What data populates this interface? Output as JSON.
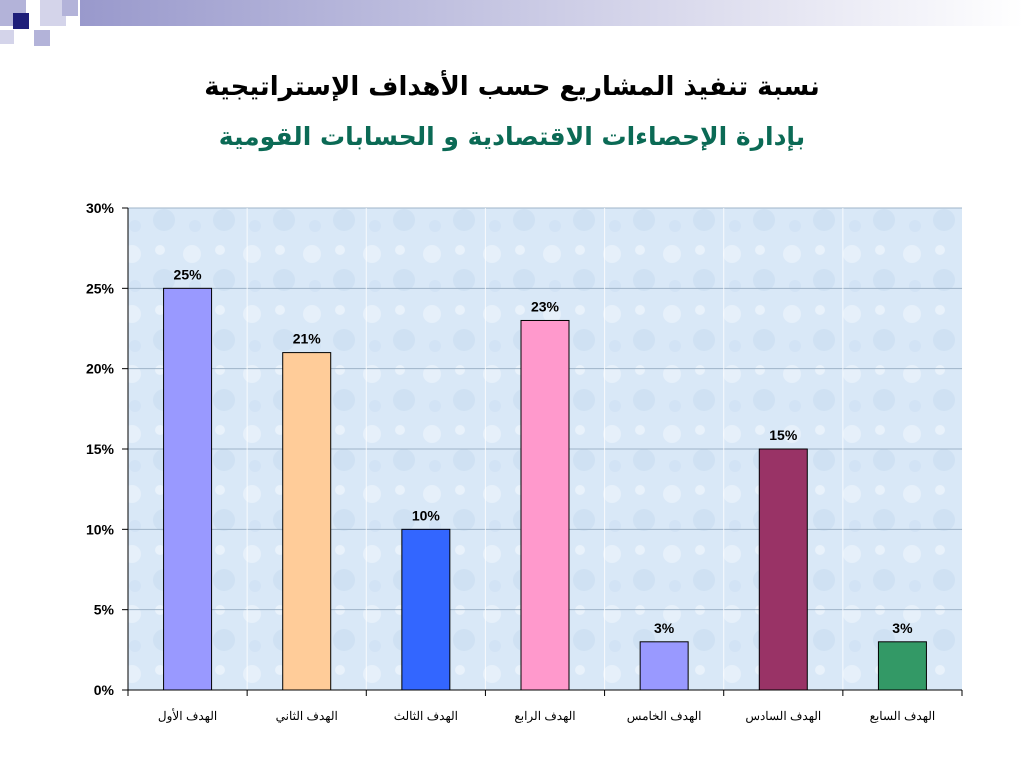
{
  "header": {
    "title_line1": "نسبة تنفيذ المشاريع حسب الأهداف الإستراتيجية",
    "title_line2": "بإدارة الإحصاءات الاقتصادية و الحسابات القومية"
  },
  "colors": {
    "title2": "#0b6a55",
    "plot_background": "#d9e8f7",
    "grid": "#9fb4c8",
    "decor_dark": "#1f1f7a",
    "decor_light": "#b3b3d9"
  },
  "chart_data": {
    "type": "bar",
    "categories": [
      "الهدف الأول",
      "الهدف الثاني",
      "الهدف الثالث",
      "الهدف الرابع",
      "الهدف الخامس",
      "الهدف السادس",
      "الهدف السابع"
    ],
    "values": [
      25,
      21,
      10,
      23,
      3,
      15,
      3
    ],
    "value_labels": [
      "25%",
      "21%",
      "10%",
      "23%",
      "3%",
      "15%",
      "3%"
    ],
    "bar_colors": [
      "#9999ff",
      "#ffcc99",
      "#3366ff",
      "#ff99cc",
      "#9999ff",
      "#993366",
      "#339966"
    ],
    "yticks": [
      0,
      5,
      10,
      15,
      20,
      25,
      30
    ],
    "ytick_labels": [
      "0%",
      "5%",
      "10%",
      "15%",
      "20%",
      "25%",
      "30%"
    ],
    "ylim": [
      0,
      30
    ],
    "grid": true,
    "legend": "none",
    "xlabel": "",
    "ylabel": ""
  }
}
